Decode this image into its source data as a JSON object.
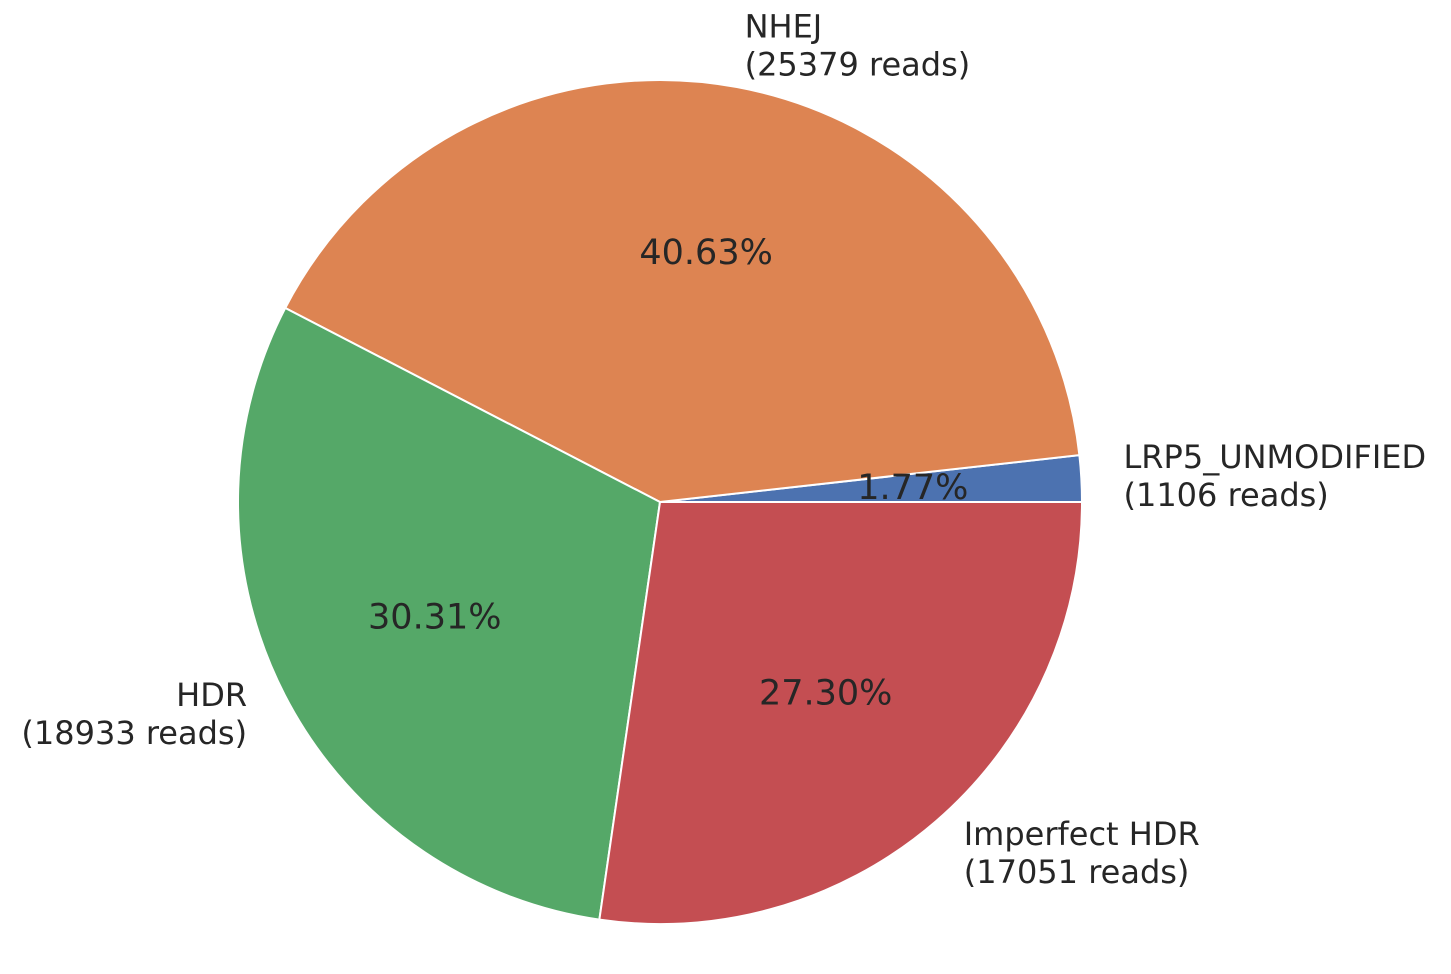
{
  "chart_data": {
    "type": "pie",
    "title": "",
    "slices": [
      {
        "label": "LRP5_UNMODIFIED",
        "reads_text": "(1106 reads)",
        "reads": 1106,
        "percent_text": "1.77%",
        "color": "#4c72b0"
      },
      {
        "label": "NHEJ",
        "reads_text": "(25379 reads)",
        "reads": 25379,
        "percent_text": "40.63%",
        "color": "#dd8452"
      },
      {
        "label": "HDR",
        "reads_text": "(18933 reads)",
        "reads": 18933,
        "percent_text": "30.31%",
        "color": "#55a868"
      },
      {
        "label": "Imperfect HDR",
        "reads_text": "(17051 reads)",
        "reads": 17051,
        "percent_text": "27.30%",
        "color": "#c44e52"
      }
    ],
    "start_angle_deg": 0,
    "direction": "counterclockwise",
    "legend": "none",
    "grid": false
  }
}
